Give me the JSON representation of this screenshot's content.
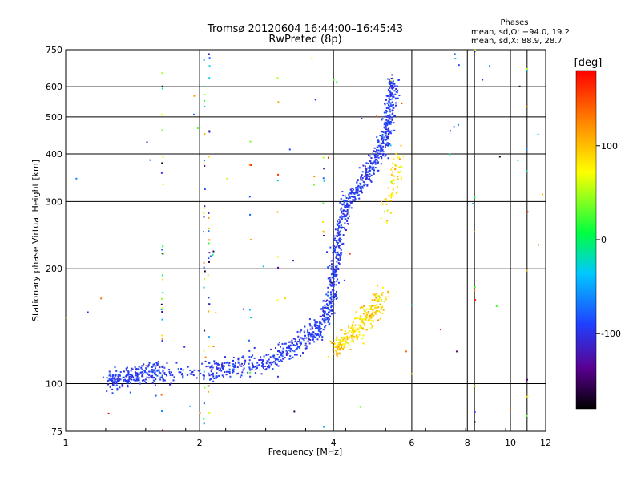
{
  "chart_data": {
    "type": "scatter",
    "title": "Tromsø 20120604 16:44:00–16:45:43",
    "subtitle": "RwPretec (8p)",
    "xlabel": "Frequency [MHz]",
    "ylabel": "Stationary phase Virtual Height [km]",
    "x_scale": "log",
    "y_scale": "log",
    "xlim": [
      1,
      12
    ],
    "ylim": [
      75,
      750
    ],
    "x_ticks": [
      1,
      2,
      4,
      6,
      8,
      10,
      12
    ],
    "y_ticks": [
      75,
      100,
      200,
      300,
      400,
      500,
      600,
      750
    ],
    "x_ticks_secondary": [
      8.3,
      10.9
    ],
    "grid": true,
    "phase_stats": {
      "title": "Phases",
      "line_o": "mean, sd,O: −94.0, 19.2",
      "line_x": "mean, sd,X:  88.9, 28.7"
    },
    "colorbar": {
      "label": "[deg]",
      "range": [
        -180,
        180
      ],
      "ticks": [
        100,
        0,
        -100
      ]
    },
    "series": [
      {
        "mode": "O",
        "phase_mean": -94.0,
        "phase_sd": 19.2,
        "trace": [
          [
            1.25,
            101
          ],
          [
            1.35,
            104
          ],
          [
            1.45,
            106
          ],
          [
            1.55,
            107
          ],
          [
            1.65,
            106
          ],
          [
            2.1,
            108
          ],
          [
            2.3,
            110
          ],
          [
            2.6,
            112
          ],
          [
            2.9,
            116
          ],
          [
            3.2,
            123
          ],
          [
            3.5,
            132
          ],
          [
            3.7,
            140
          ],
          [
            3.85,
            150
          ],
          [
            3.95,
            165
          ],
          [
            4.0,
            185
          ],
          [
            4.05,
            210
          ],
          [
            4.1,
            240
          ],
          [
            4.2,
            275
          ],
          [
            4.3,
            300
          ],
          [
            4.5,
            320
          ],
          [
            4.7,
            345
          ],
          [
            4.9,
            375
          ],
          [
            5.1,
            410
          ],
          [
            5.25,
            450
          ],
          [
            5.35,
            500
          ],
          [
            5.4,
            560
          ],
          [
            5.45,
            620
          ]
        ],
        "spread_km": 0.06
      },
      {
        "mode": "X",
        "phase_mean": 88.9,
        "phase_sd": 28.7,
        "trace": [
          [
            4.0,
            120
          ],
          [
            4.2,
            128
          ],
          [
            4.4,
            135
          ],
          [
            4.6,
            142
          ],
          [
            4.8,
            150
          ],
          [
            5.0,
            160
          ],
          [
            5.2,
            170
          ]
        ],
        "extra_trace": [
          [
            5.2,
            280
          ],
          [
            5.4,
            320
          ],
          [
            5.55,
            360
          ],
          [
            5.7,
            400
          ]
        ],
        "spread_km": 0.07
      },
      {
        "mode": "interference",
        "lines_mhz": [
          1.65,
          2.05,
          2.1,
          2.6,
          3.0,
          3.8,
          8.3,
          10.9
        ]
      }
    ]
  }
}
